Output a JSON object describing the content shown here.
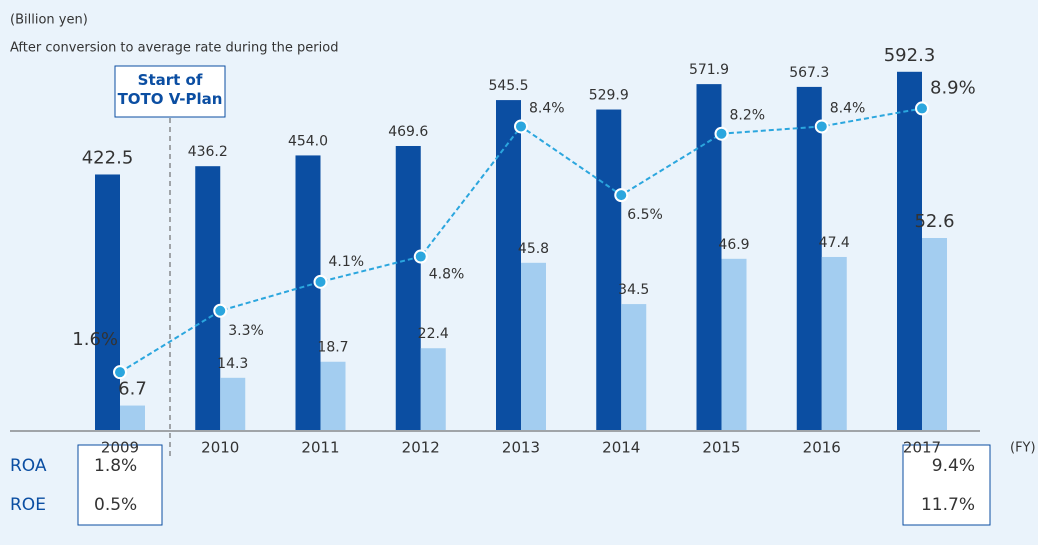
{
  "chart_data": {
    "type": "bar",
    "unit_label": "(Billion yen)",
    "subtitle": "After conversion to average rate during the period",
    "annotation": "Start of\nTOTO V-Plan",
    "x_unit": "(FY)",
    "categories": [
      "2009",
      "2010",
      "2011",
      "2012",
      "2013",
      "2014",
      "2015",
      "2016",
      "2017"
    ],
    "series": [
      {
        "type": "bar",
        "color": "#0b4ea2",
        "ylim": [
          0,
          711
        ],
        "values": [
          422.5,
          436.2,
          454.0,
          469.6,
          545.5,
          529.9,
          571.9,
          567.3,
          592.3
        ],
        "value_labels": [
          "422.5",
          "436.2",
          "454.0",
          "469.6",
          "545.5",
          "529.9",
          "571.9",
          "567.3",
          "592.3"
        ]
      },
      {
        "type": "bar",
        "color": "#a3cdf0",
        "ylim": [
          0,
          117.8
        ],
        "values": [
          6.7,
          14.3,
          18.7,
          22.4,
          45.8,
          34.5,
          46.9,
          47.4,
          52.6
        ],
        "value_labels": [
          "6.7",
          "14.3",
          "18.7",
          "22.4",
          "45.8",
          "34.5",
          "46.9",
          "47.4",
          "52.6"
        ]
      },
      {
        "type": "line",
        "color": "#2ba6de",
        "ylim": [
          0,
          11.9
        ],
        "values": [
          1.6,
          3.3,
          4.1,
          4.8,
          8.4,
          6.5,
          8.2,
          8.4,
          8.9
        ],
        "value_labels": [
          "1.6%",
          "3.3%",
          "4.1%",
          "4.8%",
          "8.4%",
          "6.5%",
          "8.2%",
          "8.4%",
          "8.9%"
        ]
      }
    ],
    "table": {
      "row_labels": [
        "ROA",
        "ROE"
      ],
      "first": [
        "1.8%",
        "0.5%"
      ],
      "last": [
        "9.4%",
        "11.7%"
      ]
    }
  }
}
